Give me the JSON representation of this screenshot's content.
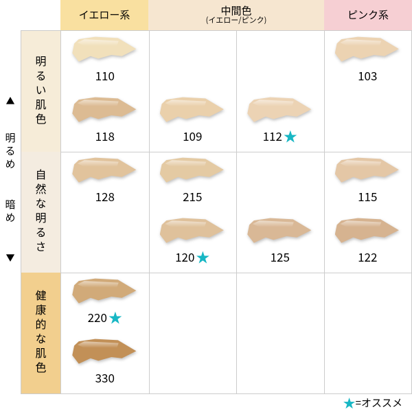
{
  "layout": {
    "columnHeaders": [
      {
        "label": "イエロー系",
        "bg": "#f9e0a0"
      },
      {
        "label": "中間色",
        "sub": "(イエロー/ピンク)",
        "bg": "#f6e6d0",
        "span": 2
      },
      {
        "label": "ピンク系",
        "bg": "#f6cfd3"
      }
    ],
    "rowGroups": [
      {
        "label": "明るい肌色",
        "bg": "#f6ecd8",
        "rows": 2
      },
      {
        "label": "自然な明るさ",
        "bg": "#f4ece0",
        "rows": 2
      },
      {
        "label": "健康的な肌色",
        "bg": "#f2cf8e",
        "rows": 2
      }
    ],
    "axis": {
      "top": "明るめ",
      "bottom": "暗め"
    },
    "legend": "=オススメ",
    "gridRows": 6,
    "gridCols": 4,
    "highlightColor": "#18b7c4"
  },
  "swatches": [
    {
      "row": 0,
      "col": 0,
      "code": "110",
      "color": "#f1e0bb"
    },
    {
      "row": 0,
      "col": 3,
      "code": "103",
      "color": "#ecd3b2"
    },
    {
      "row": 1,
      "col": 0,
      "code": "118",
      "color": "#dcbb93"
    },
    {
      "row": 1,
      "col": 1,
      "code": "109",
      "color": "#ead0ab"
    },
    {
      "row": 1,
      "col": 2,
      "code": "112",
      "color": "#ecd3b4",
      "star": true
    },
    {
      "row": 2,
      "col": 0,
      "code": "128",
      "color": "#e1c39c"
    },
    {
      "row": 2,
      "col": 1,
      "code": "215",
      "color": "#e4caa3"
    },
    {
      "row": 2,
      "col": 3,
      "code": "115",
      "color": "#e4c7a6"
    },
    {
      "row": 3,
      "col": 1,
      "code": "120",
      "color": "#dfc19b",
      "star": true
    },
    {
      "row": 3,
      "col": 2,
      "code": "125",
      "color": "#d9b896"
    },
    {
      "row": 3,
      "col": 3,
      "code": "122",
      "color": "#d6b390"
    },
    {
      "row": 4,
      "col": 0,
      "code": "220",
      "color": "#d1aa79",
      "star": true
    },
    {
      "row": 5,
      "col": 0,
      "code": "330",
      "color": "#c29057"
    }
  ]
}
